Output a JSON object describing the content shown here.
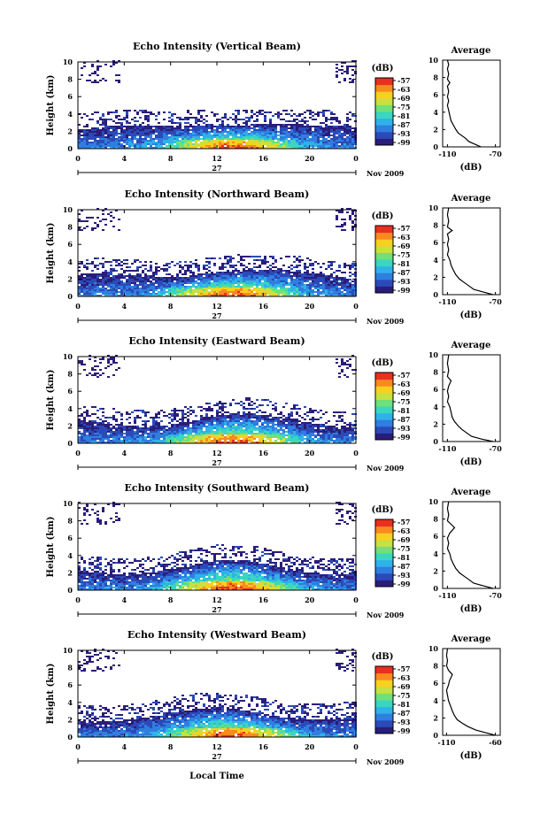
{
  "page": {
    "footer_xlabel": "Local Time"
  },
  "colorbar": {
    "title": "(dB)",
    "ticks": [
      "-57",
      "-63",
      "-69",
      "-75",
      "-81",
      "-87",
      "-93",
      "-99"
    ],
    "colors": [
      "#2a1d7a",
      "#2b4ab8",
      "#2f7ee0",
      "#2fb2e8",
      "#3ad6c0",
      "#6fe07a",
      "#c8e040",
      "#f8d020",
      "#f88a20",
      "#e83020"
    ]
  },
  "date_label": "Nov 2009",
  "day_label": "27",
  "x_ticks": [
    "0",
    "4",
    "8",
    "12",
    "16",
    "20",
    "0"
  ],
  "y_ticks": [
    "0",
    "2",
    "4",
    "6",
    "8",
    "10"
  ],
  "ylabel": "Height (km)",
  "avg": {
    "title": "Average",
    "xlabel": "(dB)"
  },
  "chart_data": [
    {
      "type": "heatmap",
      "title": "Echo Intensity (Vertical Beam)",
      "xlabel": "",
      "ylabel": "Height (km)",
      "xlim": [
        0,
        24
      ],
      "ylim": [
        0,
        10
      ],
      "x_ticks": [
        "0",
        "4",
        "8",
        "12",
        "16",
        "20",
        "0"
      ],
      "colorbar_title": "(dB)",
      "colorbar_ticks": [
        "-57",
        "-63",
        "-69",
        "-75",
        "-81",
        "-87",
        "-93",
        "-99"
      ],
      "avg_profile": {
        "title": "Average",
        "xlabel": "(dB)",
        "x_ticks": [
          "-110",
          "-70"
        ],
        "xlim": [
          -114,
          -66
        ],
        "points": [
          [
            -82,
            0
          ],
          [
            -87,
            0.3
          ],
          [
            -92,
            0.6
          ],
          [
            -95,
            1
          ],
          [
            -98,
            1.3
          ],
          [
            -101,
            1.6
          ],
          [
            -103,
            2
          ],
          [
            -105,
            2.5
          ],
          [
            -107,
            3
          ],
          [
            -108,
            3.6
          ],
          [
            -109,
            4.2
          ],
          [
            -110,
            4.8
          ],
          [
            -109,
            5.3
          ],
          [
            -110,
            5.8
          ],
          [
            -109,
            6.4
          ],
          [
            -110,
            7
          ],
          [
            -108,
            7.4
          ],
          [
            -110,
            7.8
          ],
          [
            -109,
            8.4
          ],
          [
            -110,
            9
          ],
          [
            -109,
            9.5
          ],
          [
            -110,
            10
          ]
        ]
      }
    },
    {
      "type": "heatmap",
      "title": "Echo Intensity (Northward Beam)",
      "xlabel": "",
      "ylabel": "Height (km)",
      "xlim": [
        0,
        24
      ],
      "ylim": [
        0,
        10
      ],
      "x_ticks": [
        "0",
        "4",
        "8",
        "12",
        "16",
        "20",
        "0"
      ],
      "colorbar_title": "(dB)",
      "colorbar_ticks": [
        "-57",
        "-63",
        "-69",
        "-75",
        "-81",
        "-87",
        "-93",
        "-99"
      ],
      "avg_profile": {
        "title": "Average",
        "xlabel": "(dB)",
        "x_ticks": [
          "-110",
          "-70"
        ],
        "xlim": [
          -114,
          -66
        ],
        "points": [
          [
            -72,
            0
          ],
          [
            -80,
            0.3
          ],
          [
            -88,
            0.6
          ],
          [
            -92,
            1
          ],
          [
            -96,
            1.4
          ],
          [
            -100,
            1.8
          ],
          [
            -103,
            2.3
          ],
          [
            -105,
            2.8
          ],
          [
            -107,
            3.4
          ],
          [
            -108,
            4
          ],
          [
            -110,
            4.6
          ],
          [
            -109,
            5.2
          ],
          [
            -110,
            5.8
          ],
          [
            -109,
            6.4
          ],
          [
            -110,
            7
          ],
          [
            -106,
            7.4
          ],
          [
            -110,
            7.8
          ],
          [
            -109,
            8.5
          ],
          [
            -110,
            9.2
          ],
          [
            -109,
            10
          ]
        ]
      }
    },
    {
      "type": "heatmap",
      "title": "Echo Intensity (Eastward Beam)",
      "xlabel": "",
      "ylabel": "Height (km)",
      "xlim": [
        0,
        24
      ],
      "ylim": [
        0,
        10
      ],
      "x_ticks": [
        "0",
        "4",
        "8",
        "12",
        "16",
        "20",
        "0"
      ],
      "colorbar_title": "(dB)",
      "colorbar_ticks": [
        "-57",
        "-63",
        "-69",
        "-75",
        "-81",
        "-87",
        "-93",
        "-99"
      ],
      "avg_profile": {
        "title": "Average",
        "xlabel": "(dB)",
        "x_ticks": [
          "-110",
          "-70"
        ],
        "xlim": [
          -114,
          -66
        ],
        "points": [
          [
            -72,
            0
          ],
          [
            -82,
            0.3
          ],
          [
            -90,
            0.6
          ],
          [
            -94,
            1
          ],
          [
            -98,
            1.4
          ],
          [
            -101,
            1.8
          ],
          [
            -104,
            2.3
          ],
          [
            -106,
            2.8
          ],
          [
            -107,
            3.4
          ],
          [
            -108,
            4
          ],
          [
            -110,
            4.6
          ],
          [
            -109,
            5.2
          ],
          [
            -110,
            5.8
          ],
          [
            -109,
            6.4
          ],
          [
            -107,
            7
          ],
          [
            -110,
            7.5
          ],
          [
            -109,
            8.2
          ],
          [
            -110,
            9
          ],
          [
            -109,
            10
          ]
        ]
      }
    },
    {
      "type": "heatmap",
      "title": "Echo Intensity (Southward Beam)",
      "xlabel": "",
      "ylabel": "Height (km)",
      "xlim": [
        0,
        24
      ],
      "ylim": [
        0,
        10
      ],
      "x_ticks": [
        "0",
        "4",
        "8",
        "12",
        "16",
        "20",
        "0"
      ],
      "colorbar_title": "(dB)",
      "colorbar_ticks": [
        "-57",
        "-63",
        "-69",
        "-75",
        "-81",
        "-87",
        "-93",
        "-99"
      ],
      "avg_profile": {
        "title": "Average",
        "xlabel": "(dB)",
        "x_ticks": [
          "-110",
          "-70"
        ],
        "xlim": [
          -114,
          -66
        ],
        "points": [
          [
            -72,
            0
          ],
          [
            -80,
            0.3
          ],
          [
            -88,
            0.6
          ],
          [
            -92,
            1
          ],
          [
            -96,
            1.4
          ],
          [
            -100,
            1.8
          ],
          [
            -103,
            2.3
          ],
          [
            -105,
            2.8
          ],
          [
            -107,
            3.4
          ],
          [
            -108,
            4
          ],
          [
            -110,
            4.6
          ],
          [
            -109,
            5.2
          ],
          [
            -110,
            5.8
          ],
          [
            -108,
            6.4
          ],
          [
            -104,
            7
          ],
          [
            -107,
            7.4
          ],
          [
            -110,
            7.8
          ],
          [
            -109,
            8.5
          ],
          [
            -110,
            9.2
          ],
          [
            -109,
            10
          ]
        ]
      }
    },
    {
      "type": "heatmap",
      "title": "Echo Intensity (Westward Beam)",
      "xlabel": "",
      "ylabel": "Height (km)",
      "xlim": [
        0,
        24
      ],
      "ylim": [
        0,
        10
      ],
      "x_ticks": [
        "0",
        "4",
        "8",
        "12",
        "16",
        "20",
        "0"
      ],
      "colorbar_title": "(dB)",
      "colorbar_ticks": [
        "-57",
        "-63",
        "-69",
        "-75",
        "-81",
        "-87",
        "-93",
        "-99"
      ],
      "avg_profile": {
        "title": "Average",
        "xlabel": "(dB)",
        "x_ticks": [
          "-110",
          "-60"
        ],
        "xlim": [
          -114,
          -55
        ],
        "points": [
          [
            -60,
            0
          ],
          [
            -70,
            0.3
          ],
          [
            -80,
            0.6
          ],
          [
            -88,
            1
          ],
          [
            -94,
            1.4
          ],
          [
            -99,
            1.8
          ],
          [
            -102,
            2.3
          ],
          [
            -104,
            2.8
          ],
          [
            -106,
            3.4
          ],
          [
            -108,
            4
          ],
          [
            -109,
            4.6
          ],
          [
            -110,
            5.2
          ],
          [
            -108,
            5.8
          ],
          [
            -107,
            6.3
          ],
          [
            -104,
            7
          ],
          [
            -108,
            7.5
          ],
          [
            -110,
            8
          ],
          [
            -109,
            8.6
          ],
          [
            -110,
            9.2
          ],
          [
            -109,
            10
          ]
        ]
      }
    }
  ]
}
